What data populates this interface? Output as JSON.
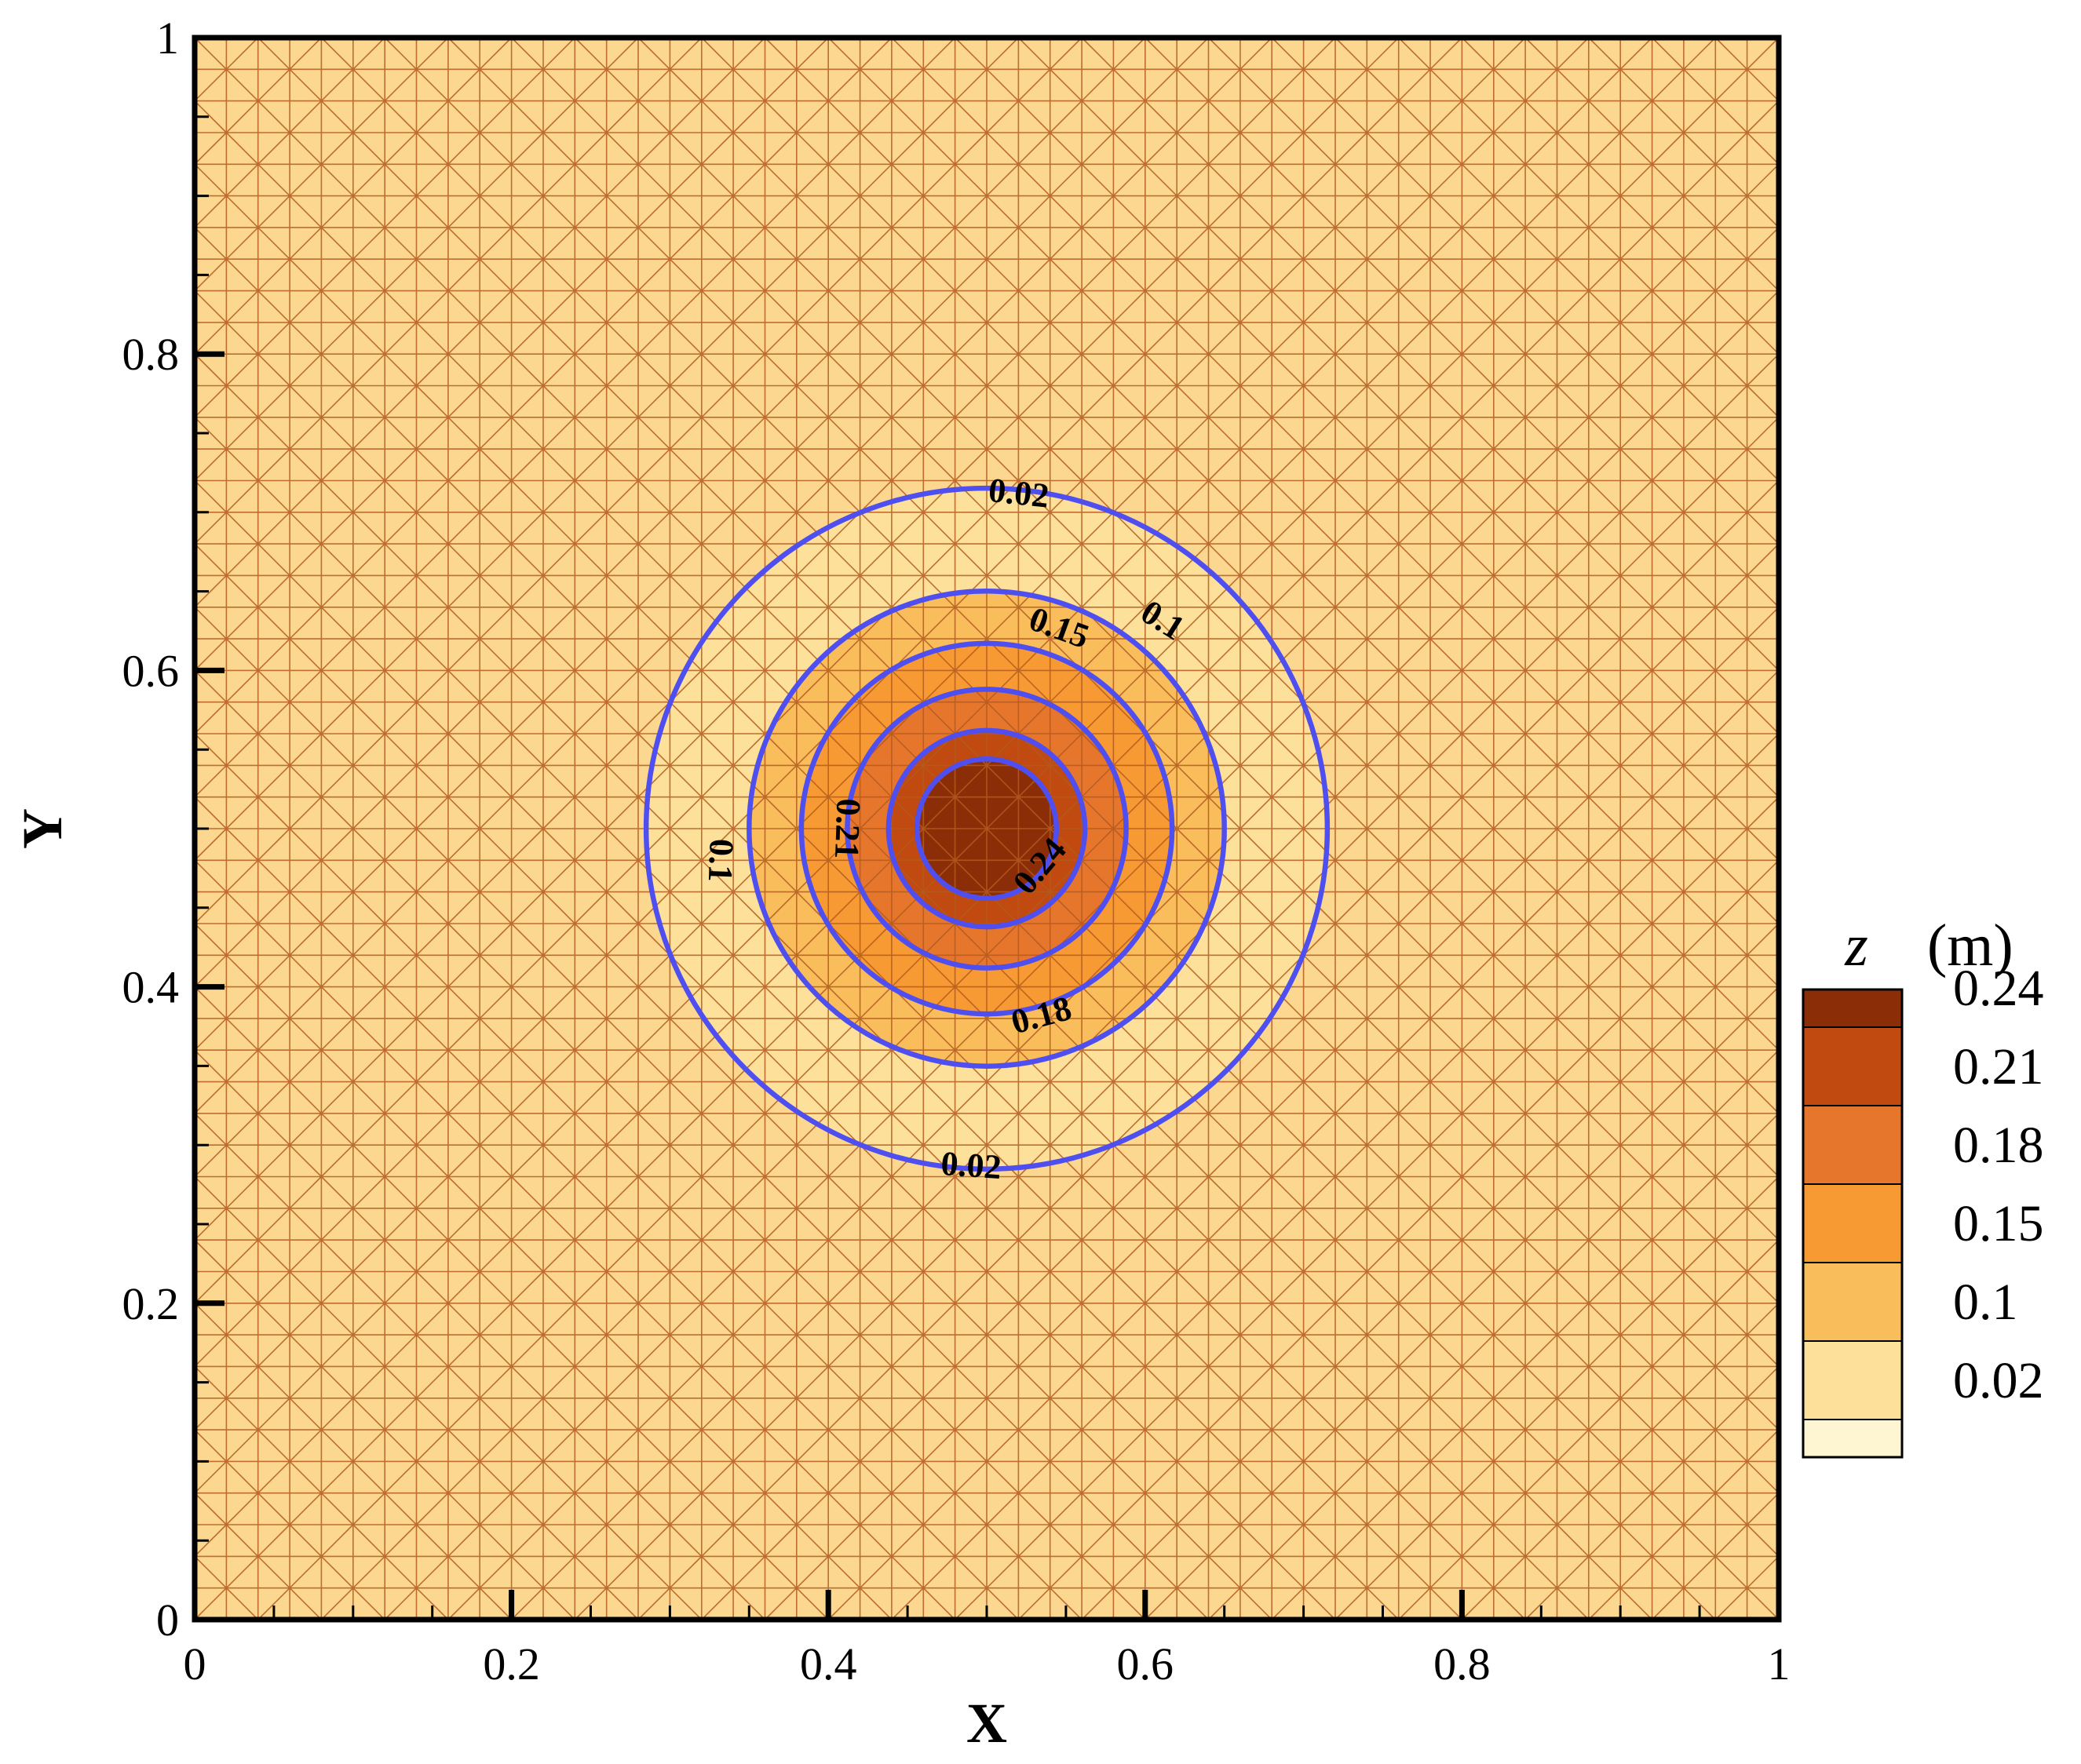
{
  "chart_data": {
    "type": "contour",
    "xlabel": "X",
    "ylabel": "Y",
    "xlim": [
      0,
      1
    ],
    "ylim": [
      0,
      1
    ],
    "x_ticks": [
      0,
      0.2,
      0.4,
      0.6,
      0.8,
      1
    ],
    "y_ticks": [
      0,
      0.2,
      0.4,
      0.6,
      0.8,
      1
    ],
    "x_tick_labels": [
      "0",
      "0.2",
      "0.4",
      "0.6",
      "0.8",
      "1"
    ],
    "y_tick_labels": [
      "0",
      "0.2",
      "0.4",
      "0.6",
      "0.8",
      "1"
    ],
    "mesh": {
      "type": "triangular",
      "divisions": 50
    },
    "center": [
      0.5,
      0.5
    ],
    "peak_value": 0.26,
    "contours": [
      {
        "level": 0.02,
        "radius": 0.215
      },
      {
        "level": 0.1,
        "radius": 0.15
      },
      {
        "level": 0.15,
        "radius": 0.117
      },
      {
        "level": 0.18,
        "radius": 0.088
      },
      {
        "level": 0.21,
        "radius": 0.062
      },
      {
        "level": 0.24,
        "radius": 0.044
      }
    ],
    "contour_labels": [
      {
        "text": "0.02",
        "x": 0.52,
        "y": 0.71,
        "angle": 6
      },
      {
        "text": "0.02",
        "x": 0.49,
        "y": 0.285,
        "angle": 4
      },
      {
        "text": "0.1",
        "x": 0.61,
        "y": 0.63,
        "angle": 32
      },
      {
        "text": "0.1",
        "x": 0.33,
        "y": 0.48,
        "angle": 92
      },
      {
        "text": "0.15",
        "x": 0.545,
        "y": 0.625,
        "angle": 20
      },
      {
        "text": "0.18",
        "x": 0.535,
        "y": 0.38,
        "angle": -15
      },
      {
        "text": "0.21",
        "x": 0.41,
        "y": 0.5,
        "angle": 92
      },
      {
        "text": "0.24",
        "x": 0.535,
        "y": 0.475,
        "angle": -50
      }
    ],
    "legend": {
      "title_var": "z",
      "title_unit": "(m)",
      "placement": "right",
      "entries": [
        {
          "label": "0.24",
          "color": "#8b2e08"
        },
        {
          "label": "0.21",
          "color": "#c04a10"
        },
        {
          "label": "0.18",
          "color": "#e7762d"
        },
        {
          "label": "0.15",
          "color": "#f89a33"
        },
        {
          "label": "0.1",
          "color": "#f9bd5c"
        },
        {
          "label": "0.02",
          "color": "#fde09a"
        }
      ],
      "base_color": "#fef6d2"
    },
    "colors": {
      "field_background": "#fcd790",
      "mesh_line": "#b35a1e",
      "contour_line": "#4f4ff0"
    }
  }
}
